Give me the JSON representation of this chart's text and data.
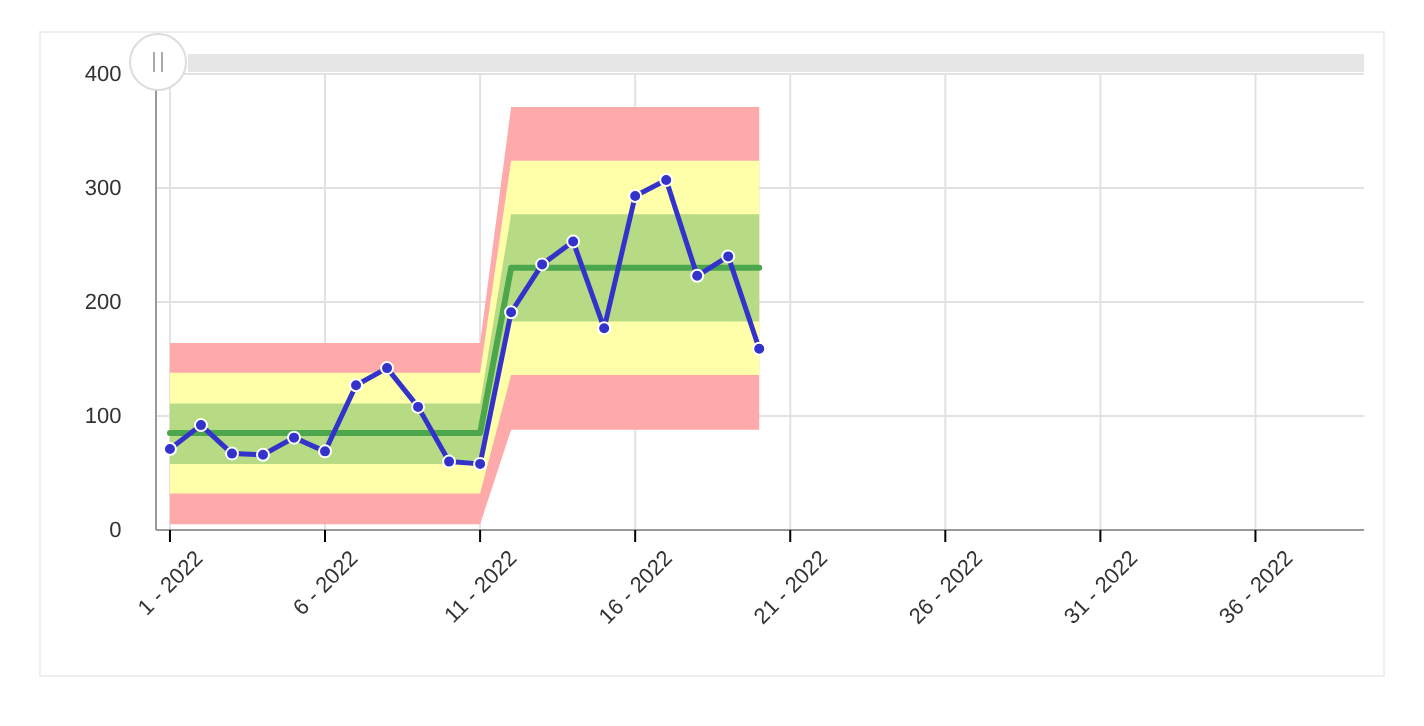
{
  "chart_data": {
    "type": "line",
    "categories": [
      "1 - 2022",
      null,
      null,
      null,
      null,
      "6 - 2022",
      null,
      null,
      null,
      null,
      "11 - 2022",
      null,
      null,
      null,
      null,
      "16 - 2022",
      null,
      null,
      null,
      null,
      "21 - 2022",
      null,
      null,
      null,
      null,
      "26 - 2022",
      null,
      null,
      null,
      null,
      "31 - 2022",
      null,
      null,
      null,
      null,
      "36 - 2022",
      null,
      null,
      null
    ],
    "ylim": [
      0,
      400
    ],
    "yticks": [
      0,
      100,
      200,
      300,
      400
    ],
    "grid": true,
    "series": [
      {
        "type": "area",
        "color": "#ffaaaa",
        "values": [
          null,
          null,
          null,
          null,
          null,
          null,
          null,
          null,
          null,
          null,
          null,
          null,
          null,
          null,
          null,
          null,
          null,
          null,
          null,
          null,
          null,
          null,
          null,
          null,
          null,
          null,
          null,
          null,
          null,
          null,
          null,
          null,
          null,
          null,
          null,
          null,
          null,
          null,
          null
        ],
        "lower": [
          5,
          5,
          5,
          5,
          5,
          5,
          5,
          5,
          5,
          5,
          5,
          88,
          88,
          88,
          88,
          88,
          88,
          88,
          88,
          88,
          null,
          null,
          null,
          null,
          null,
          null,
          null,
          null,
          null,
          null,
          null,
          null,
          null,
          null,
          null,
          null,
          null,
          null,
          null
        ],
        "upper": [
          164,
          164,
          164,
          164,
          164,
          164,
          164,
          164,
          164,
          164,
          164,
          371,
          371,
          371,
          371,
          371,
          371,
          371,
          371,
          371,
          null,
          null,
          null,
          null,
          null,
          null,
          null,
          null,
          null,
          null,
          null,
          null,
          null,
          null,
          null,
          null,
          null,
          null,
          null
        ]
      },
      {
        "type": "area",
        "color": "#ffffaa",
        "values": [
          null,
          null,
          null,
          null,
          null,
          null,
          null,
          null,
          null,
          null,
          null,
          null,
          null,
          null,
          null,
          null,
          null,
          null,
          null,
          null,
          null,
          null,
          null,
          null,
          null,
          null,
          null,
          null,
          null,
          null,
          null,
          null,
          null,
          null,
          null,
          null,
          null,
          null,
          null
        ],
        "lower": [
          32,
          32,
          32,
          32,
          32,
          32,
          32,
          32,
          32,
          32,
          32,
          136,
          136,
          136,
          136,
          136,
          136,
          136,
          136,
          136,
          null,
          null,
          null,
          null,
          null,
          null,
          null,
          null,
          null,
          null,
          null,
          null,
          null,
          null,
          null,
          null,
          null,
          null,
          null
        ],
        "upper": [
          138,
          138,
          138,
          138,
          138,
          138,
          138,
          138,
          138,
          138,
          138,
          324,
          324,
          324,
          324,
          324,
          324,
          324,
          324,
          324,
          null,
          null,
          null,
          null,
          null,
          null,
          null,
          null,
          null,
          null,
          null,
          null,
          null,
          null,
          null,
          null,
          null,
          null,
          null
        ]
      },
      {
        "color": "#4ca64c",
        "marker": "none",
        "values": [
          85,
          85,
          85,
          85,
          85,
          85,
          85,
          85,
          85,
          85,
          85,
          230,
          230,
          230,
          230,
          230,
          230,
          230,
          230,
          230,
          null,
          null,
          null,
          null,
          null,
          null,
          null,
          null,
          null,
          null,
          null,
          null,
          null,
          null,
          null,
          null,
          null,
          null,
          null
        ],
        "lower": [
          58,
          58,
          58,
          58,
          58,
          58,
          58,
          58,
          58,
          58,
          58,
          183,
          183,
          183,
          183,
          183,
          183,
          183,
          183,
          183,
          null,
          null,
          null,
          null,
          null,
          null,
          null,
          null,
          null,
          null,
          null,
          null,
          null,
          null,
          null,
          null,
          null,
          null,
          null
        ],
        "upper": [
          111,
          111,
          111,
          111,
          111,
          111,
          111,
          111,
          111,
          111,
          111,
          277,
          277,
          277,
          277,
          277,
          277,
          277,
          277,
          277,
          null,
          null,
          null,
          null,
          null,
          null,
          null,
          null,
          null,
          null,
          null,
          null,
          null,
          null,
          null,
          null,
          null,
          null,
          null
        ]
      },
      {
        "color": "#3333cc",
        "marker": "circle",
        "values": [
          71,
          92,
          67,
          66,
          81,
          69,
          127,
          142,
          108,
          60,
          58,
          191,
          233,
          253,
          177,
          293,
          307,
          223,
          240,
          159,
          null,
          null,
          null,
          null,
          null,
          null,
          null,
          null,
          null,
          null,
          null,
          null,
          null,
          null,
          null,
          null,
          null,
          null,
          null
        ]
      }
    ],
    "line_style": "solid"
  }
}
